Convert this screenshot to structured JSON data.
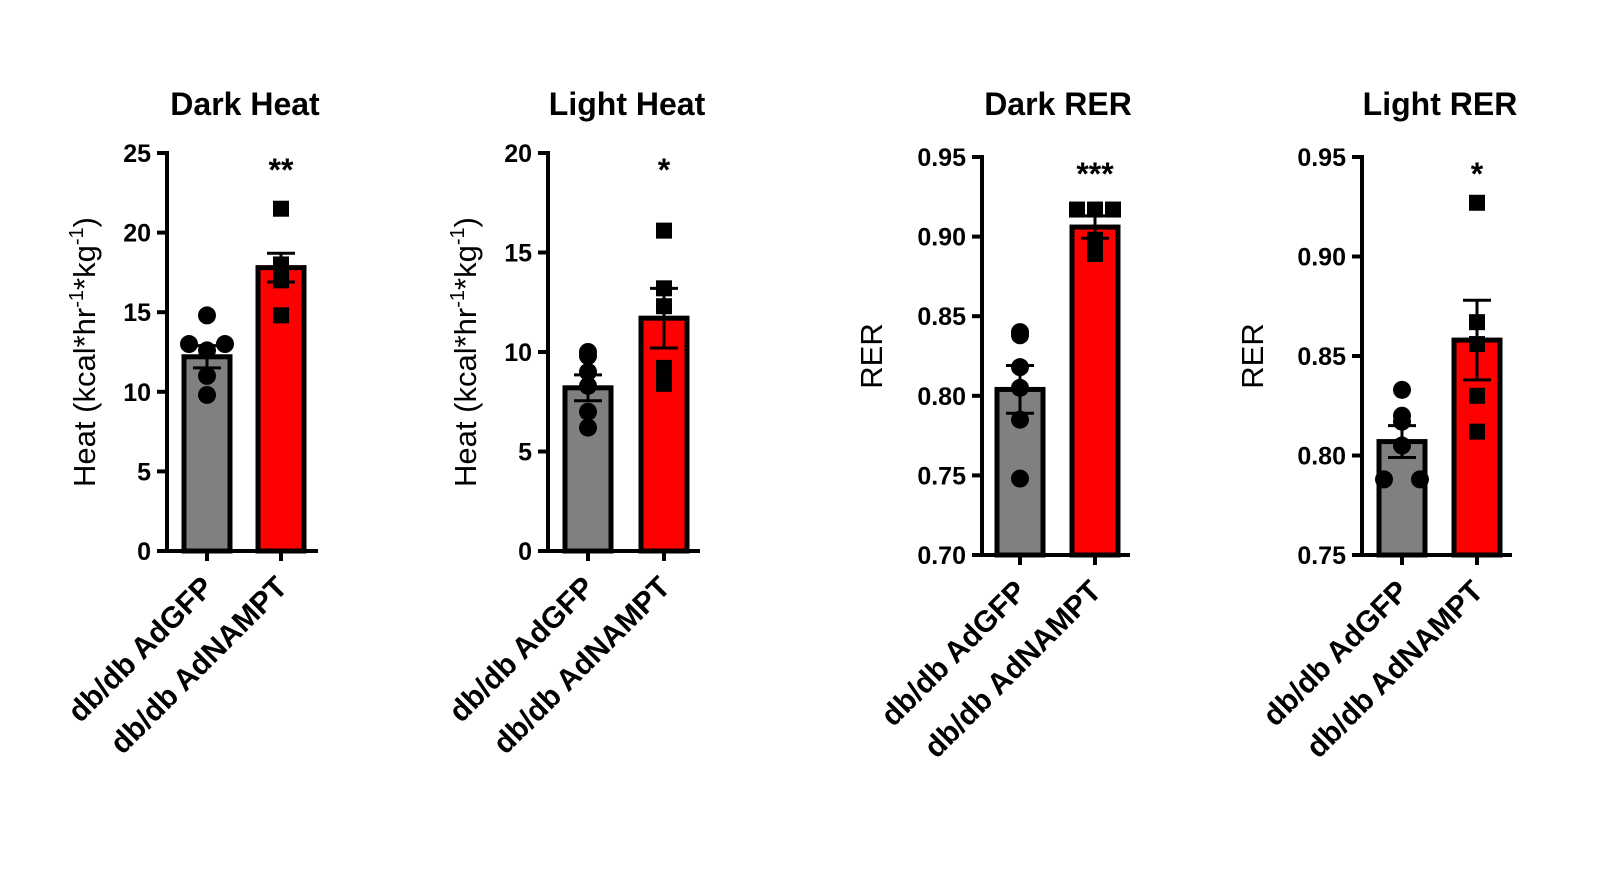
{
  "colors": {
    "control": "#808080",
    "treatment": "#ff0000",
    "axis": "#000000"
  },
  "chart_data": [
    {
      "type": "bar",
      "title": "Dark Heat",
      "ylabel": "Heat (kcal*hr-1*kg-1)",
      "ylabel_parts": [
        "Heat (kcal*hr",
        "-1",
        "*kg",
        "-1",
        ")"
      ],
      "ylim": [
        0,
        25
      ],
      "yticks": [
        "0",
        "5",
        "10",
        "15",
        "20",
        "25"
      ],
      "ytick_values": [
        0,
        5,
        10,
        15,
        20,
        25
      ],
      "categories": [
        "db/db AdGFP",
        "db/db AdNAMPT"
      ],
      "means": [
        12.2,
        17.8
      ],
      "sem": [
        0.7,
        0.9
      ],
      "points": [
        [
          14.8,
          13.0,
          13.0,
          12.6,
          11.0,
          9.8
        ],
        [
          21.5,
          18.0,
          17.7,
          17.0,
          14.8
        ]
      ],
      "significance": "**"
    },
    {
      "type": "bar",
      "title": "Light Heat",
      "ylabel": "Heat (kcal*hr-1*kg-1)",
      "ylabel_parts": [
        "Heat (kcal*hr",
        "-1",
        "*kg",
        "-1",
        ")"
      ],
      "ylim": [
        0,
        20
      ],
      "yticks": [
        "0",
        "5",
        "10",
        "15",
        "20"
      ],
      "ytick_values": [
        0,
        5,
        10,
        15,
        20
      ],
      "categories": [
        "db/db AdGFP",
        "db/db AdNAMPT"
      ],
      "means": [
        8.2,
        11.7
      ],
      "sem": [
        0.65,
        1.5
      ],
      "points": [
        [
          9.8,
          10.0,
          9.0,
          8.3,
          7.0,
          6.2
        ],
        [
          16.1,
          13.2,
          12.3,
          9.2,
          8.4
        ]
      ],
      "significance": "*"
    },
    {
      "type": "bar",
      "title": "Dark RER",
      "ylabel": "RER",
      "ylabel_parts": [
        "RER"
      ],
      "ylim": [
        0.7,
        0.95
      ],
      "yticks": [
        "0.70",
        "0.75",
        "0.80",
        "0.85",
        "0.90",
        "0.95"
      ],
      "ytick_values": [
        0.7,
        0.75,
        0.8,
        0.85,
        0.9,
        0.95
      ],
      "categories": [
        "db/db AdGFP",
        "db/db AdNAMPT"
      ],
      "means": [
        0.804,
        0.906
      ],
      "sem": [
        0.015,
        0.007
      ],
      "points": [
        [
          0.838,
          0.84,
          0.818,
          0.805,
          0.785,
          0.748
        ],
        [
          0.917,
          0.917,
          0.917,
          0.898,
          0.889
        ]
      ],
      "significance": "***"
    },
    {
      "type": "bar",
      "title": "Light RER",
      "ylabel": "RER",
      "ylabel_parts": [
        "RER"
      ],
      "ylim": [
        0.75,
        0.95
      ],
      "yticks": [
        "0.75",
        "0.80",
        "0.85",
        "0.90",
        "0.95"
      ],
      "ytick_values": [
        0.75,
        0.8,
        0.85,
        0.9,
        0.95
      ],
      "categories": [
        "db/db AdGFP",
        "db/db AdNAMPT"
      ],
      "means": [
        0.807,
        0.858
      ],
      "sem": [
        0.008,
        0.02
      ],
      "points": [
        [
          0.833,
          0.82,
          0.817,
          0.805,
          0.788,
          0.788
        ],
        [
          0.927,
          0.867,
          0.856,
          0.83,
          0.812
        ]
      ],
      "significance": "*"
    }
  ]
}
